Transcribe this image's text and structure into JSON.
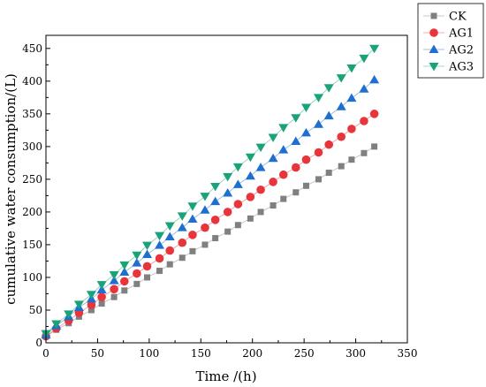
{
  "chart_data": {
    "type": "scatter",
    "title": "",
    "xlabel": "Time /(h)",
    "ylabel": "cumulative water consumption/(L)",
    "xlim": [
      0,
      350
    ],
    "ylim": [
      0,
      470
    ],
    "xticks": [
      0,
      50,
      100,
      150,
      200,
      250,
      300,
      350
    ],
    "yticks": [
      0,
      50,
      100,
      150,
      200,
      250,
      300,
      350,
      400,
      450
    ],
    "grid": false,
    "legend_position": "top-right, outside plot",
    "x": [
      0,
      10,
      22,
      32,
      44,
      54,
      66,
      76,
      88,
      98,
      110,
      120,
      132,
      142,
      154,
      164,
      176,
      186,
      198,
      208,
      220,
      230,
      242,
      252,
      264,
      274,
      286,
      296,
      308,
      318
    ],
    "series": [
      {
        "name": "CK",
        "marker": "square",
        "color": "#808080",
        "values": [
          10,
          20,
          30,
          40,
          50,
          60,
          70,
          80,
          90,
          100,
          110,
          120,
          130,
          140,
          150,
          160,
          170,
          180,
          190,
          200,
          210,
          220,
          230,
          240,
          250,
          260,
          270,
          280,
          290,
          300
        ]
      },
      {
        "name": "AG1",
        "marker": "circle",
        "color": "#e8343b",
        "values": [
          10,
          22,
          34,
          46,
          58,
          70,
          82,
          94,
          106,
          117,
          129,
          141,
          153,
          165,
          176,
          188,
          200,
          212,
          223,
          234,
          246,
          257,
          268,
          280,
          291,
          303,
          315,
          327,
          339,
          350
        ]
      },
      {
        "name": "AG2",
        "marker": "triangle-up",
        "color": "#1f6fd1",
        "values": [
          12,
          26,
          40,
          54,
          67,
          81,
          95,
          108,
          122,
          135,
          149,
          162,
          176,
          189,
          203,
          216,
          229,
          242,
          255,
          268,
          282,
          295,
          308,
          321,
          334,
          347,
          361,
          374,
          388,
          402
        ]
      },
      {
        "name": "AG3",
        "marker": "triangle-down",
        "color": "#1aa37a",
        "values": [
          14,
          29,
          44,
          59,
          74,
          89,
          104,
          119,
          134,
          149,
          164,
          179,
          194,
          209,
          224,
          239,
          254,
          269,
          284,
          299,
          314,
          329,
          344,
          360,
          375,
          390,
          405,
          420,
          435,
          450
        ]
      }
    ]
  }
}
